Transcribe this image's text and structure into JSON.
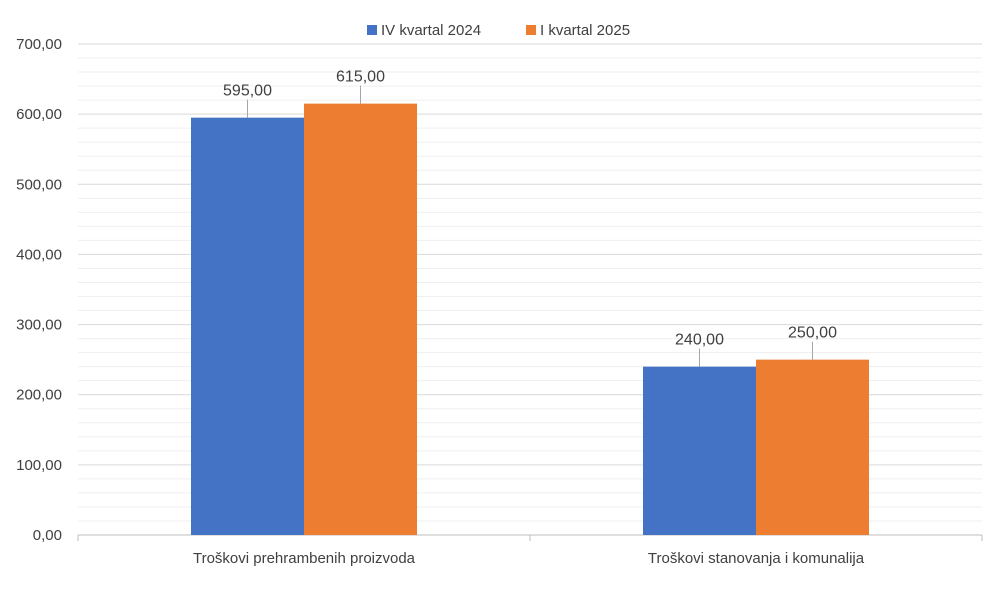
{
  "chart_data": {
    "type": "bar",
    "categories": [
      "Troškovi prehrambenih proizvoda",
      "Troškovi stanovanja i komunalija"
    ],
    "series": [
      {
        "name": "IV kvartal 2024",
        "values": [
          595.0,
          240.0
        ],
        "color": "#4472C4"
      },
      {
        "name": "I kvartal 2025",
        "values": [
          615.0,
          250.0
        ],
        "color": "#ED7D31"
      }
    ],
    "data_labels": [
      [
        "595,00",
        "240,00"
      ],
      [
        "615,00",
        "250,00"
      ]
    ],
    "ylim": [
      0,
      700
    ],
    "yticks": [
      0,
      100,
      200,
      300,
      400,
      500,
      600,
      700
    ],
    "ytick_labels": [
      "0,00",
      "100,00",
      "200,00",
      "300,00",
      "400,00",
      "500,00",
      "600,00",
      "700,00"
    ],
    "grid": true,
    "legend_position": "top",
    "title": "",
    "xlabel": "",
    "ylabel": ""
  }
}
